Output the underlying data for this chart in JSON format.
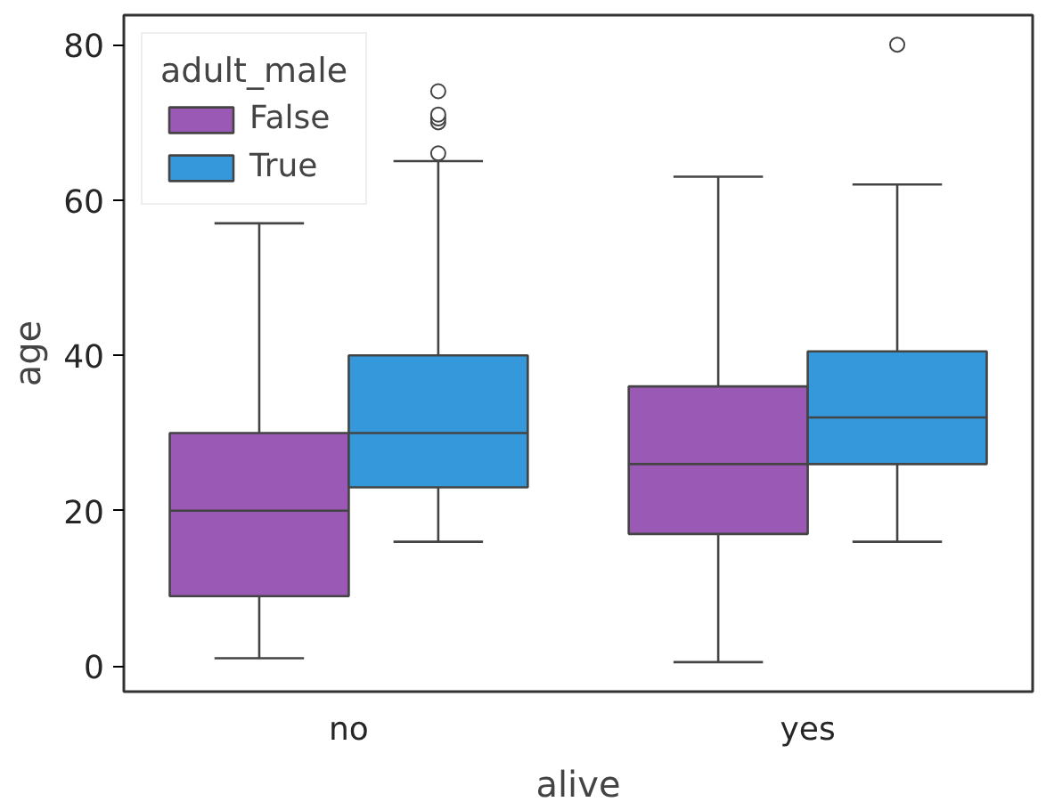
{
  "chart_data": {
    "type": "box",
    "xlabel": "alive",
    "ylabel": "age",
    "legend_title": "adult_male",
    "categories": [
      "no",
      "yes"
    ],
    "series": [
      {
        "name": "False",
        "color": "#9b59b6",
        "boxes": [
          {
            "low": 1,
            "q1": 9,
            "median": 20,
            "q3": 30,
            "high": 57
          },
          {
            "low": 0.5,
            "q1": 17,
            "median": 26,
            "q3": 36,
            "high": 63
          }
        ]
      },
      {
        "name": "True",
        "color": "#3498db",
        "boxes": [
          {
            "low": 16,
            "q1": 23,
            "median": 30,
            "q3": 40,
            "high": 65,
            "outliers": [
              66,
              70,
              70.5,
              71,
              74
            ]
          },
          {
            "low": 16,
            "q1": 26,
            "median": 32,
            "q3": 40.5,
            "high": 62,
            "outliers": [
              80
            ]
          }
        ]
      }
    ],
    "ylim": [
      -3.3,
      83.8
    ],
    "yticks": [
      0,
      20,
      40,
      60,
      80
    ],
    "grid": false,
    "legend": "top left"
  }
}
